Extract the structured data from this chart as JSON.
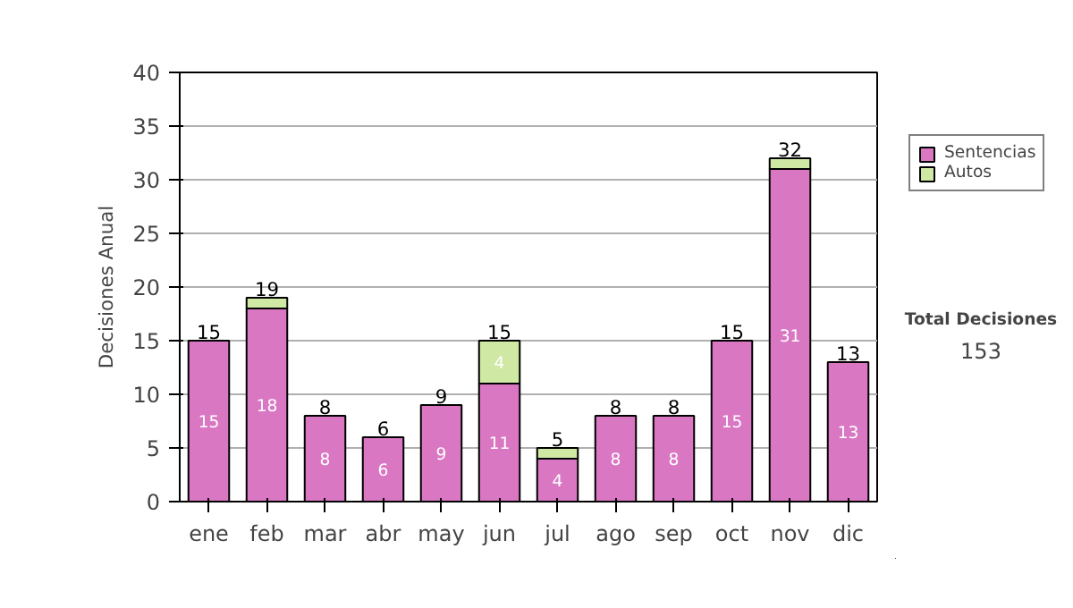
{
  "chart_data": {
    "type": "bar",
    "stacked": true,
    "ylabel": "Decisiones Anual",
    "categories": [
      "ene",
      "feb",
      "mar",
      "abr",
      "may",
      "jun",
      "jul",
      "ago",
      "sep",
      "oct",
      "nov",
      "dic"
    ],
    "series": [
      {
        "name": "Sentencias",
        "color": "#d977c3",
        "values": [
          15,
          18,
          8,
          6,
          9,
          11,
          4,
          8,
          8,
          15,
          31,
          13
        ],
        "value_labels": [
          "15",
          "18",
          "8",
          "6",
          "9",
          "11",
          "4",
          "8",
          "8",
          "15",
          "31",
          "13"
        ]
      },
      {
        "name": "Autos",
        "color": "#cfe8a3",
        "values": [
          0,
          1,
          0,
          0,
          0,
          4,
          1,
          0,
          0,
          0,
          1,
          0
        ],
        "value_labels": [
          null,
          null,
          null,
          null,
          null,
          "4",
          null,
          null,
          null,
          null,
          null,
          null
        ]
      }
    ],
    "totals": [
      "15",
      "19",
      "8",
      "6",
      "9",
      "15",
      "5",
      "8",
      "8",
      "15",
      "32",
      "13"
    ],
    "ylim": [
      0,
      40
    ],
    "yticks": [
      0,
      5,
      10,
      15,
      20,
      25,
      30,
      35,
      40
    ],
    "grid": "y",
    "legend": "right",
    "annotations": [
      "Total Decisiones",
      "153"
    ]
  }
}
